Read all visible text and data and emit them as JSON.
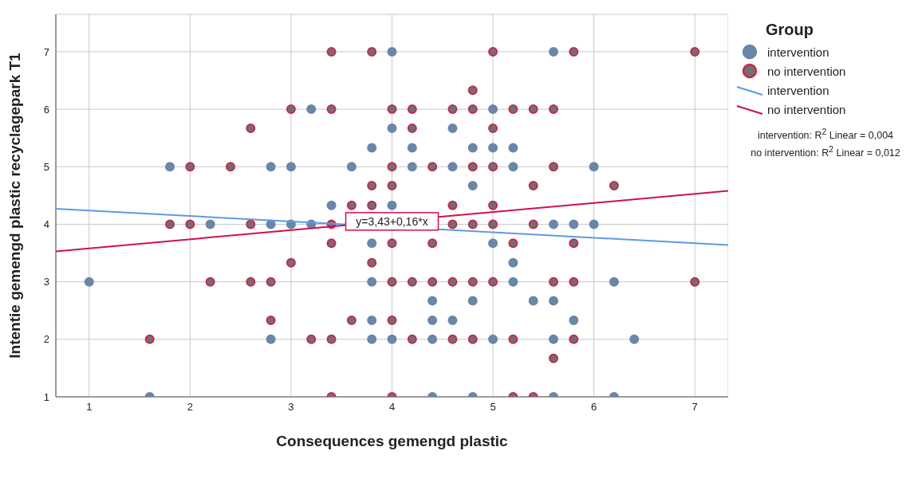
{
  "chart_data": {
    "type": "scatter",
    "xlabel": "Consequences gemengd plastic",
    "ylabel": "Intentie gemengd plastic recyclagepark T1",
    "legend_title": "Group",
    "xlim": [
      0.67,
      7.33
    ],
    "ylim": [
      1,
      7.65
    ],
    "xticks": [
      1,
      2,
      3,
      4,
      5,
      6,
      7
    ],
    "yticks": [
      1,
      2,
      3,
      4,
      5,
      6,
      7
    ],
    "grid": true,
    "legend": "top right",
    "marker": "circle",
    "annotations": [
      {
        "text": "y=3,43+0,16*x",
        "x": 4,
        "y": 4.05
      },
      "intervention: R$^{2}$ Linear = 0,004",
      "no intervention: R$^{2}$ Linear = 0,012"
    ],
    "series": [
      {
        "name": "intervention",
        "color": "#6a86a8",
        "x": [
          4.0,
          5.6,
          3.2,
          5.0,
          4.0,
          4.6,
          3.8,
          4.2,
          4.8,
          5.0,
          5.2,
          1.8,
          2.8,
          3.0,
          3.6,
          4.2,
          4.6,
          5.2,
          6.0,
          4.8,
          3.4,
          4.0,
          2.2,
          2.8,
          3.0,
          3.2,
          5.6,
          5.8,
          6.0,
          3.8,
          5.0,
          5.2,
          1.0,
          3.8,
          5.2,
          6.2,
          4.4,
          4.8,
          5.4,
          5.6,
          3.8,
          4.4,
          4.6,
          5.8,
          2.8,
          3.8,
          4.0,
          4.4,
          5.0,
          5.6,
          6.4,
          1.6,
          4.4,
          4.8,
          5.6,
          6.2
        ],
        "values": [
          7,
          7,
          6,
          6,
          5.67,
          5.67,
          5.33,
          5.33,
          5.33,
          5.33,
          5.33,
          5,
          5,
          5,
          5,
          5,
          5,
          5,
          5,
          4.67,
          4.33,
          4.33,
          4,
          4,
          4,
          4,
          4,
          4,
          4,
          3.67,
          3.67,
          3.33,
          3,
          3,
          3,
          3,
          2.67,
          2.67,
          2.67,
          2.67,
          2.33,
          2.33,
          2.33,
          2.33,
          2,
          2,
          2,
          2,
          2,
          2,
          2,
          1,
          1,
          1,
          1,
          1
        ]
      },
      {
        "name": "no intervention",
        "color": "#c8294e",
        "x": [
          3.4,
          3.8,
          5.0,
          5.8,
          7.0,
          4.8,
          3.0,
          3.4,
          4.0,
          4.2,
          4.6,
          4.8,
          5.2,
          5.4,
          5.6,
          2.6,
          4.2,
          5.0,
          2.0,
          2.4,
          4.0,
          4.4,
          4.8,
          5.0,
          5.6,
          3.8,
          4.0,
          5.4,
          6.2,
          3.6,
          3.8,
          4.6,
          5.0,
          1.8,
          2.0,
          2.6,
          3.4,
          4.6,
          4.8,
          5.0,
          5.4,
          3.4,
          4.0,
          4.4,
          5.2,
          5.8,
          3.0,
          3.8,
          2.2,
          2.6,
          2.8,
          4.0,
          4.2,
          4.4,
          4.6,
          4.8,
          5.0,
          5.6,
          5.8,
          7.0,
          2.8,
          3.6,
          4.0,
          1.6,
          3.2,
          3.4,
          4.2,
          4.6,
          4.8,
          5.2,
          5.8,
          5.6,
          3.4,
          4.0,
          5.2,
          5.4
        ],
        "values": [
          7,
          7,
          7,
          7,
          7,
          6.33,
          6,
          6,
          6,
          6,
          6,
          6,
          6,
          6,
          6,
          5.67,
          5.67,
          5.67,
          5,
          5,
          5,
          5,
          5,
          5,
          5,
          4.67,
          4.67,
          4.67,
          4.67,
          4.33,
          4.33,
          4.33,
          4.33,
          4,
          4,
          4,
          4,
          4,
          4,
          4,
          4,
          3.67,
          3.67,
          3.67,
          3.67,
          3.67,
          3.33,
          3.33,
          3,
          3,
          3,
          3,
          3,
          3,
          3,
          3,
          3,
          3,
          3,
          3,
          2.33,
          2.33,
          2.33,
          2,
          2,
          2,
          2,
          2,
          2,
          2,
          2,
          1.67,
          1,
          1,
          1,
          1
        ]
      },
      {
        "name": "intervention",
        "type": "line",
        "marker": "none",
        "color": "#5b9be6",
        "x": [
          0.67,
          7.33
        ],
        "values": [
          4.27,
          3.64
        ]
      },
      {
        "name": "no intervention",
        "type": "line",
        "marker": "none",
        "color": "#d0104c",
        "x": [
          0.67,
          7.33
        ],
        "values": [
          3.53,
          4.58
        ]
      }
    ]
  }
}
